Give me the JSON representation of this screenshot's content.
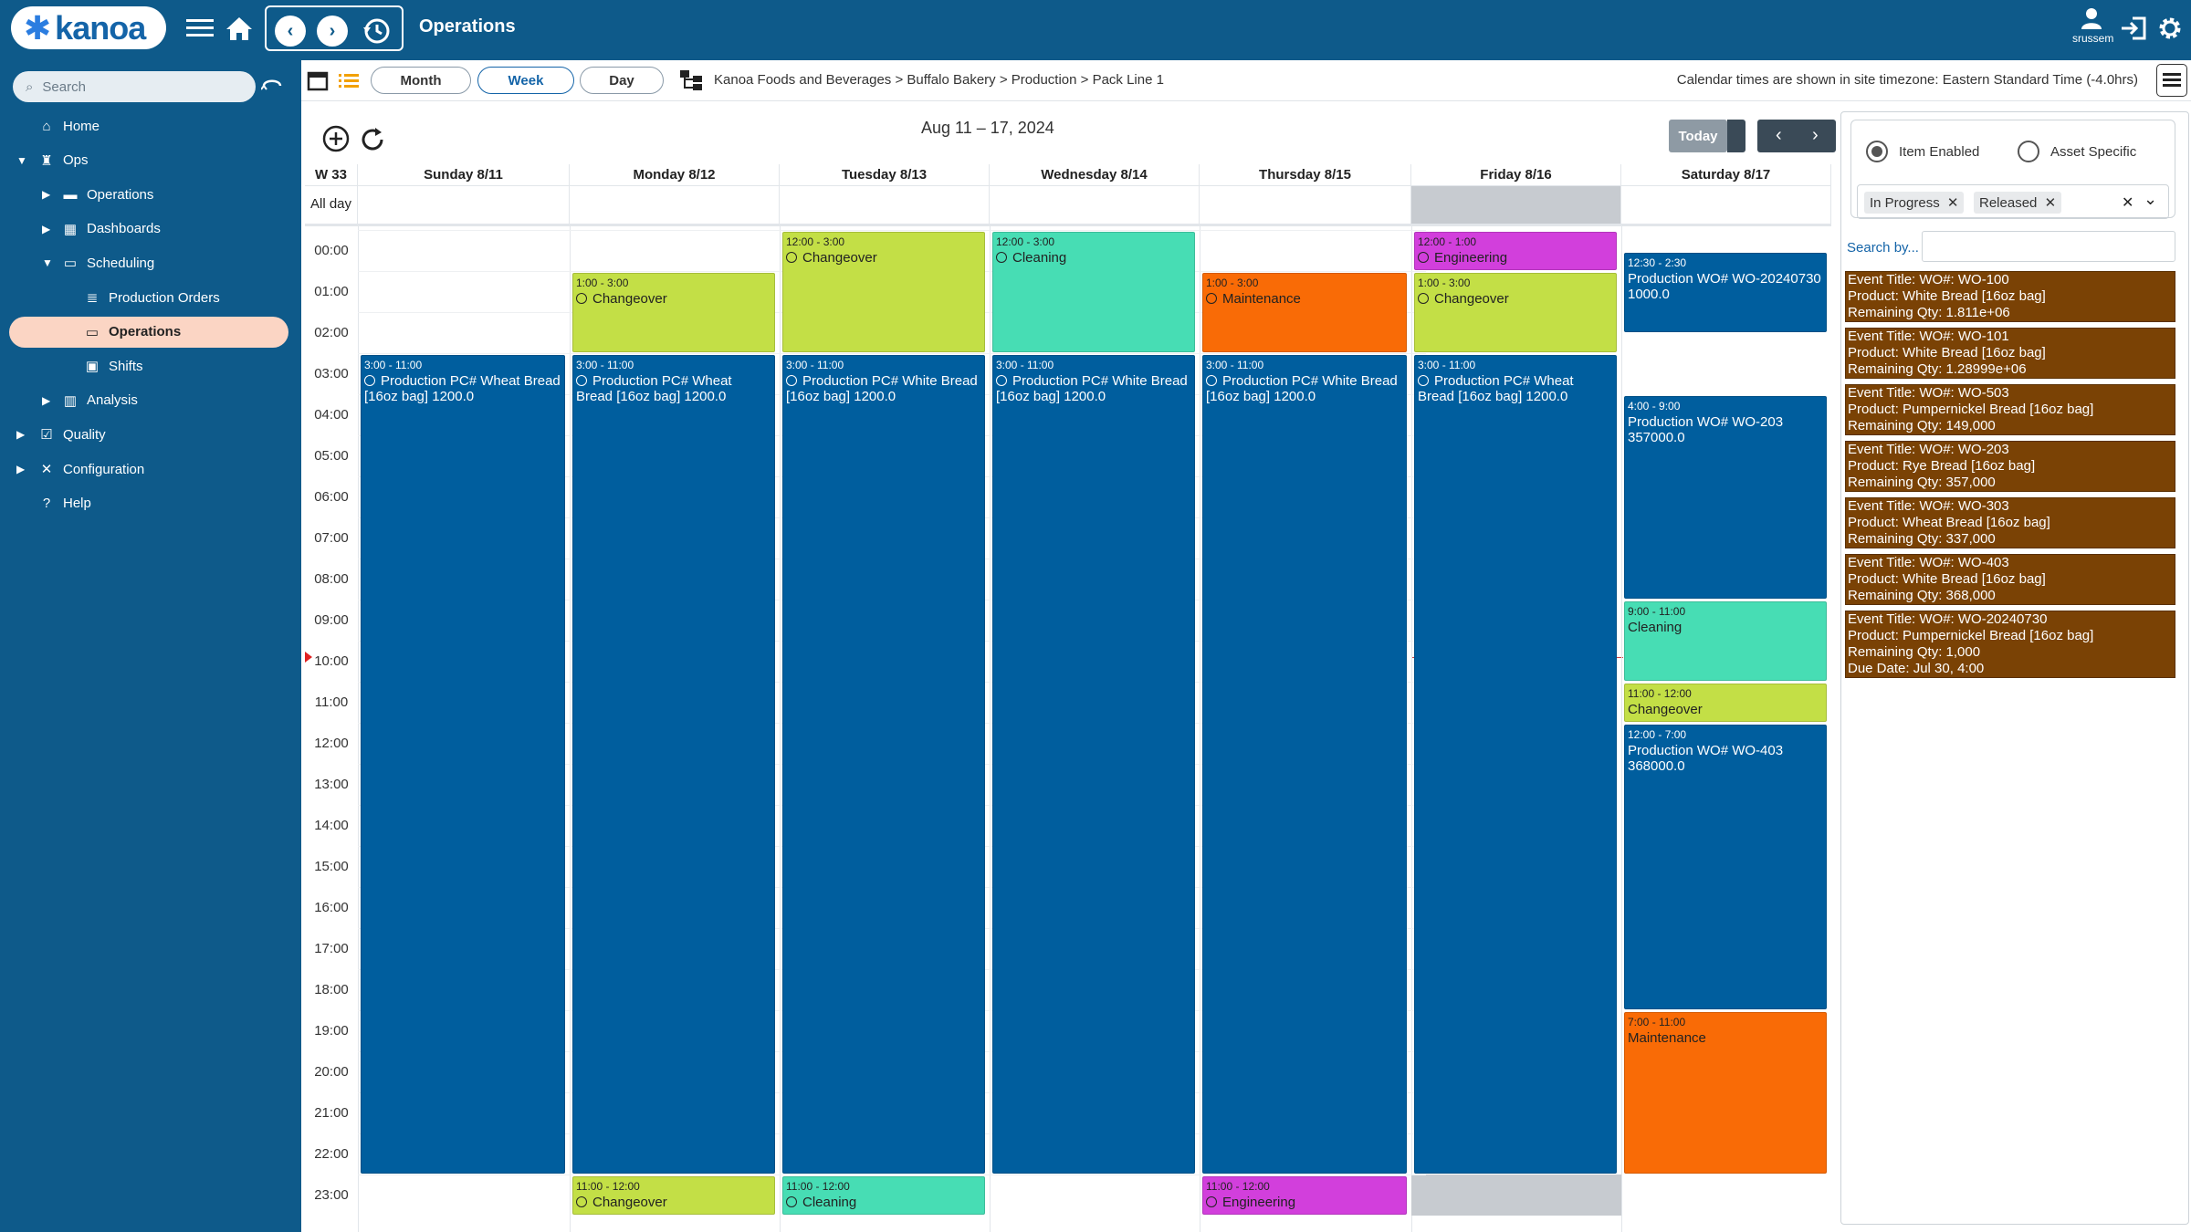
{
  "app": {
    "logo_text": "kanoa",
    "page_title": "Operations",
    "user": "srussem"
  },
  "sidebar": {
    "search_placeholder": "Search",
    "items": [
      {
        "label": "Home",
        "indent": 0,
        "arrow": "",
        "icon": "home-icon"
      },
      {
        "label": "Ops",
        "indent": 0,
        "arrow": "down",
        "icon": "ops-icon"
      },
      {
        "label": "Operations",
        "indent": 1,
        "arrow": "right",
        "icon": "folder-icon"
      },
      {
        "label": "Dashboards",
        "indent": 1,
        "arrow": "right",
        "icon": "dashboard-icon"
      },
      {
        "label": "Scheduling",
        "indent": 1,
        "arrow": "down",
        "icon": "calendar-icon"
      },
      {
        "label": "Production Orders",
        "indent": 2,
        "arrow": "",
        "icon": "document-icon"
      },
      {
        "label": "Operations",
        "indent": 2,
        "arrow": "",
        "icon": "calendar-icon",
        "active": true
      },
      {
        "label": "Shifts",
        "indent": 2,
        "arrow": "",
        "icon": "shift-icon"
      },
      {
        "label": "Analysis",
        "indent": 1,
        "arrow": "right",
        "icon": "chart-icon"
      },
      {
        "label": "Quality",
        "indent": 0,
        "arrow": "right",
        "icon": "quality-icon"
      },
      {
        "label": "Configuration",
        "indent": 0,
        "arrow": "right",
        "icon": "tools-icon"
      },
      {
        "label": "Help",
        "indent": 0,
        "arrow": "",
        "icon": "help-icon"
      }
    ]
  },
  "toolbar": {
    "month": "Month",
    "week": "Week",
    "day": "Day",
    "breadcrumb": "Kanoa Foods and Beverages > Buffalo Bakery > Production > Pack Line 1",
    "timezone": "Calendar times are shown in site timezone: Eastern Standard Time (-4.0hrs)"
  },
  "calendar": {
    "range": "Aug 11 – 17, 2024",
    "today": "Today",
    "week": "W 33",
    "allday": "All day",
    "days": [
      "Sunday 8/11",
      "Monday 8/12",
      "Tuesday 8/13",
      "Wednesday 8/14",
      "Thursday 8/15",
      "Friday 8/16",
      "Saturday 8/17"
    ],
    "hours": [
      "00:00",
      "01:00",
      "02:00",
      "03:00",
      "04:00",
      "05:00",
      "06:00",
      "07:00",
      "08:00",
      "09:00",
      "10:00",
      "11:00",
      "12:00",
      "13:00",
      "14:00",
      "15:00",
      "16:00",
      "17:00",
      "18:00",
      "19:00",
      "20:00",
      "21:00",
      "22:00",
      "23:00"
    ],
    "events": [
      {
        "day": 0,
        "start": 3,
        "end": 23,
        "time": "3:00 - 11:00",
        "title": "Production PC# Wheat Bread [16oz bag] 1200.0",
        "kind": "prod",
        "clock": true
      },
      {
        "day": 1,
        "start": 1,
        "end": 3,
        "time": "1:00 - 3:00",
        "title": "Changeover",
        "kind": "chg",
        "clock": true
      },
      {
        "day": 1,
        "start": 3,
        "end": 23,
        "time": "3:00 - 11:00",
        "title": "Production PC# Wheat Bread [16oz bag] 1200.0",
        "kind": "prod",
        "clock": true
      },
      {
        "day": 1,
        "start": 23,
        "end": 24,
        "time": "11:00 - 12:00",
        "title": "Changeover",
        "kind": "chg",
        "clock": true
      },
      {
        "day": 2,
        "start": 0,
        "end": 3,
        "time": "12:00 - 3:00",
        "title": "Changeover",
        "kind": "chg",
        "clock": true
      },
      {
        "day": 2,
        "start": 3,
        "end": 23,
        "time": "3:00 - 11:00",
        "title": "Production PC# White Bread [16oz bag] 1200.0",
        "kind": "prod",
        "clock": true
      },
      {
        "day": 2,
        "start": 23,
        "end": 24,
        "time": "11:00 - 12:00",
        "title": "Cleaning",
        "kind": "cln",
        "clock": true
      },
      {
        "day": 3,
        "start": 0,
        "end": 3,
        "time": "12:00 - 3:00",
        "title": "Cleaning",
        "kind": "cln",
        "clock": true
      },
      {
        "day": 3,
        "start": 3,
        "end": 23,
        "time": "3:00 - 11:00",
        "title": "Production PC# White Bread [16oz bag] 1200.0",
        "kind": "prod",
        "clock": true
      },
      {
        "day": 4,
        "start": 1,
        "end": 3,
        "time": "1:00 - 3:00",
        "title": "Maintenance",
        "kind": "mnt",
        "clock": true
      },
      {
        "day": 4,
        "start": 3,
        "end": 23,
        "time": "3:00 - 11:00",
        "title": "Production PC# White Bread [16oz bag] 1200.0",
        "kind": "prod",
        "clock": true
      },
      {
        "day": 4,
        "start": 23,
        "end": 24,
        "time": "11:00 - 12:00",
        "title": "Engineering",
        "kind": "eng",
        "clock": true
      },
      {
        "day": 5,
        "start": 0,
        "end": 1,
        "time": "12:00 - 1:00",
        "title": "Engineering",
        "kind": "eng",
        "clock": true
      },
      {
        "day": 5,
        "start": 1,
        "end": 3,
        "time": "1:00 - 3:00",
        "title": "Changeover",
        "kind": "chg",
        "clock": true
      },
      {
        "day": 5,
        "start": 3,
        "end": 23,
        "time": "3:00 - 11:00",
        "title": "Production PC# Wheat Bread [16oz bag] 1200.0",
        "kind": "prod",
        "clock": true
      },
      {
        "day": 6,
        "start": 0.5,
        "end": 2.5,
        "time": "12:30 - 2:30",
        "title": "Production WO# WO-20240730 1000.0",
        "kind": "prod",
        "clock": false
      },
      {
        "day": 6,
        "start": 4,
        "end": 9,
        "time": "4:00 - 9:00",
        "title": "Production WO# WO-203 357000.0",
        "kind": "prod",
        "clock": false
      },
      {
        "day": 6,
        "start": 9,
        "end": 11,
        "time": "9:00 - 11:00",
        "title": "Cleaning",
        "kind": "cln",
        "clock": false
      },
      {
        "day": 6,
        "start": 11,
        "end": 12,
        "time": "11:00 - 12:00",
        "title": "Changeover",
        "kind": "chg",
        "clock": false
      },
      {
        "day": 6,
        "start": 12,
        "end": 19,
        "time": "12:00 - 7:00",
        "title": "Production WO# WO-403 368000.0",
        "kind": "prod",
        "clock": false
      },
      {
        "day": 6,
        "start": 19,
        "end": 23,
        "time": "7:00 - 11:00",
        "title": "Maintenance",
        "kind": "mnt",
        "clock": false
      }
    ]
  },
  "panel": {
    "item_enabled": "Item Enabled",
    "asset_specific": "Asset Specific",
    "chips": [
      "In Progress",
      "Released"
    ],
    "search_label": "Search by...",
    "cards": [
      [
        "Event Title: WO#: WO-100",
        "Product: White Bread [16oz bag]",
        "Remaining Qty: 1.811e+06"
      ],
      [
        "Event Title: WO#: WO-101",
        "Product: White Bread [16oz bag]",
        "Remaining Qty: 1.28999e+06"
      ],
      [
        "Event Title: WO#: WO-503",
        "Product: Pumpernickel Bread [16oz bag]",
        "Remaining Qty: 149,000"
      ],
      [
        "Event Title: WO#: WO-203",
        "Product: Rye Bread [16oz bag]",
        "Remaining Qty: 357,000"
      ],
      [
        "Event Title: WO#: WO-303",
        "Product: Wheat Bread [16oz bag]",
        "Remaining Qty: 337,000"
      ],
      [
        "Event Title: WO#: WO-403",
        "Product: White Bread [16oz bag]",
        "Remaining Qty: 368,000"
      ],
      [
        "Event Title: WO#: WO-20240730",
        "Product: Pumpernickel Bread [16oz bag]",
        "Remaining Qty: 1,000",
        "Due Date: Jul 30, 4:00"
      ]
    ]
  }
}
